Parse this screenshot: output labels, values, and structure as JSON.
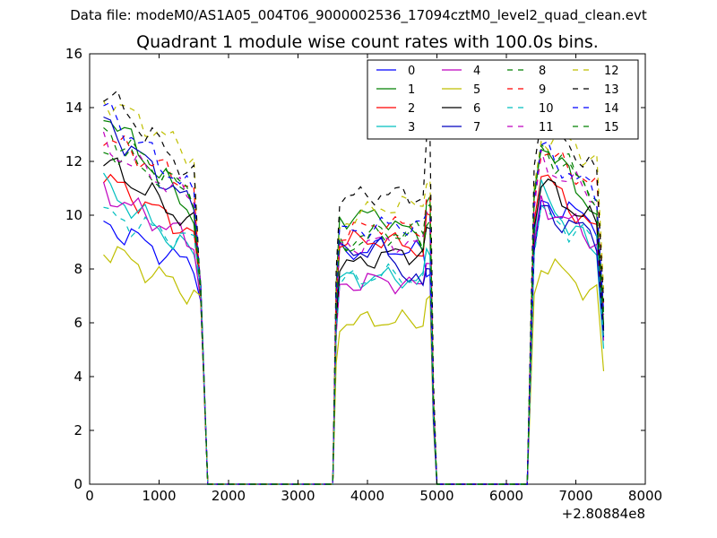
{
  "header": {
    "suptitle": "Data file: modeM0/AS1A05_004T06_9000002536_17094cztM0_level2_quad_clean.evt"
  },
  "chart_data": {
    "type": "line",
    "title": "Quadrant 1 module wise count rates with 100.0s bins.",
    "xlabel": "",
    "ylabel": "",
    "x_offset_label": "+2.80884e8",
    "xlim": [
      0,
      8000
    ],
    "ylim": [
      0,
      16
    ],
    "xticks": [
      0,
      1000,
      2000,
      3000,
      4000,
      5000,
      6000,
      7000,
      8000
    ],
    "yticks": [
      0,
      2,
      4,
      6,
      8,
      10,
      12,
      14,
      16
    ],
    "legend_location": "top-right",
    "legend_columns": 4,
    "segments": [
      {
        "t_start": 200,
        "t_end": 1550,
        "t_zero": 1700
      },
      {
        "t_start": 3600,
        "t_end": 4900,
        "t_rise": 3500,
        "t_zero": 5000
      },
      {
        "t_start": 6400,
        "t_end": 7400,
        "t_rise": 6300
      }
    ],
    "plateau_zero_ranges": [
      [
        1700,
        3500
      ],
      [
        5000,
        6300
      ]
    ],
    "series": [
      {
        "name": "0",
        "color": "#0000ff",
        "dash": false,
        "levels": [
          9.7,
          8.0,
          8.6,
          8.8,
          8.6,
          7.8,
          10.5,
          9.7
        ]
      },
      {
        "name": "1",
        "color": "#008000",
        "dash": false,
        "levels": [
          13.9,
          9.9,
          9.9,
          10.0,
          9.0,
          10.7,
          12.8,
          9.9
        ]
      },
      {
        "name": "2",
        "color": "#ff0000",
        "dash": false,
        "levels": [
          11.4,
          9.2,
          9.0,
          9.1,
          8.7,
          10.0,
          11.5,
          9.2
        ]
      },
      {
        "name": "3",
        "color": "#00bfbf",
        "dash": false,
        "levels": [
          11.1,
          8.4,
          7.6,
          7.7,
          7.6,
          8.5,
          10.8,
          8.4
        ]
      },
      {
        "name": "4",
        "color": "#bf00bf",
        "dash": false,
        "levels": [
          10.9,
          8.9,
          7.4,
          7.6,
          7.3,
          8.2,
          10.5,
          8.9
        ]
      },
      {
        "name": "5",
        "color": "#bfbf00",
        "dash": false,
        "levels": [
          8.8,
          7.0,
          6.0,
          6.1,
          6.0,
          7.0,
          8.3,
          7.0
        ]
      },
      {
        "name": "6",
        "color": "#000000",
        "dash": false,
        "levels": [
          12.0,
          9.5,
          8.0,
          8.5,
          8.6,
          9.5,
          11.2,
          9.5
        ]
      },
      {
        "name": "7",
        "color": "#0000bf",
        "dash": false,
        "levels": [
          13.5,
          10.1,
          8.6,
          8.8,
          7.2,
          8.0,
          10.2,
          9.1
        ]
      },
      {
        "name": "8",
        "color": "#008000",
        "dash": true,
        "levels": [
          12.5,
          10.7,
          9.0,
          9.3,
          9.0,
          9.8,
          12.8,
          10.7
        ]
      },
      {
        "name": "9",
        "color": "#ff0000",
        "dash": true,
        "levels": [
          12.9,
          11.0,
          9.3,
          9.7,
          9.5,
          10.7,
          12.4,
          11.0
        ]
      },
      {
        "name": "10",
        "color": "#00bfbf",
        "dash": true,
        "levels": [
          10.0,
          9.0,
          7.5,
          7.8,
          7.6,
          8.5,
          10.0,
          9.0
        ]
      },
      {
        "name": "11",
        "color": "#bf00bf",
        "dash": true,
        "levels": [
          12.6,
          10.5,
          8.8,
          9.0,
          8.9,
          10.0,
          12.0,
          10.5
        ]
      },
      {
        "name": "12",
        "color": "#bfbf00",
        "dash": true,
        "levels": [
          14.4,
          12.1,
          9.7,
          10.3,
          10.4,
          11.3,
          13.0,
          12.1
        ]
      },
      {
        "name": "13",
        "color": "#000000",
        "dash": true,
        "levels": [
          14.6,
          11.3,
          10.6,
          10.8,
          10.7,
          12.9,
          13.9,
          11.3
        ]
      },
      {
        "name": "14",
        "color": "#0000ff",
        "dash": true,
        "levels": [
          14.0,
          10.6,
          9.3,
          9.6,
          9.6,
          10.0,
          12.5,
          10.6
        ]
      },
      {
        "name": "15",
        "color": "#008000",
        "dash": true,
        "levels": [
          13.2,
          10.6,
          8.7,
          9.4,
          9.4,
          10.4,
          12.5,
          10.6
        ]
      }
    ]
  }
}
